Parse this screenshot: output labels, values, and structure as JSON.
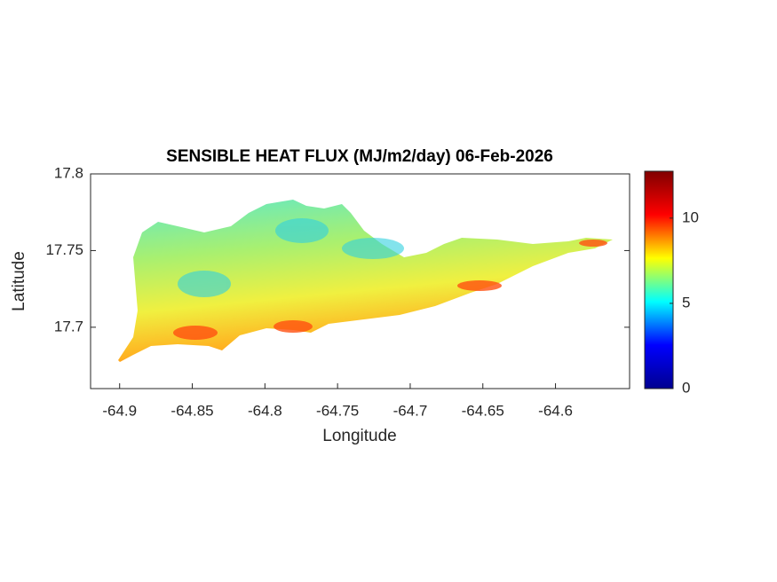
{
  "chart_data": {
    "type": "map",
    "title": "SENSIBLE HEAT FLUX (MJ/m2/day) 06-Feb-2026",
    "x_label": "Longitude",
    "y_label": "Latitude",
    "xlim": [
      -64.92,
      -64.549
    ],
    "xticks": [
      -64.9,
      -64.85,
      -64.8,
      -64.75,
      -64.7,
      -64.65,
      -64.6
    ],
    "ylim": [
      17.66,
      17.8
    ],
    "yticks": [
      17.7,
      17.75,
      17.8
    ],
    "clim": [
      0,
      12.75
    ],
    "cticks": [
      0,
      5,
      10
    ],
    "colormap": [
      "#00008f",
      "#0000ff",
      "#00ffff",
      "#ffff00",
      "#ff0000",
      "#800000"
    ]
  }
}
